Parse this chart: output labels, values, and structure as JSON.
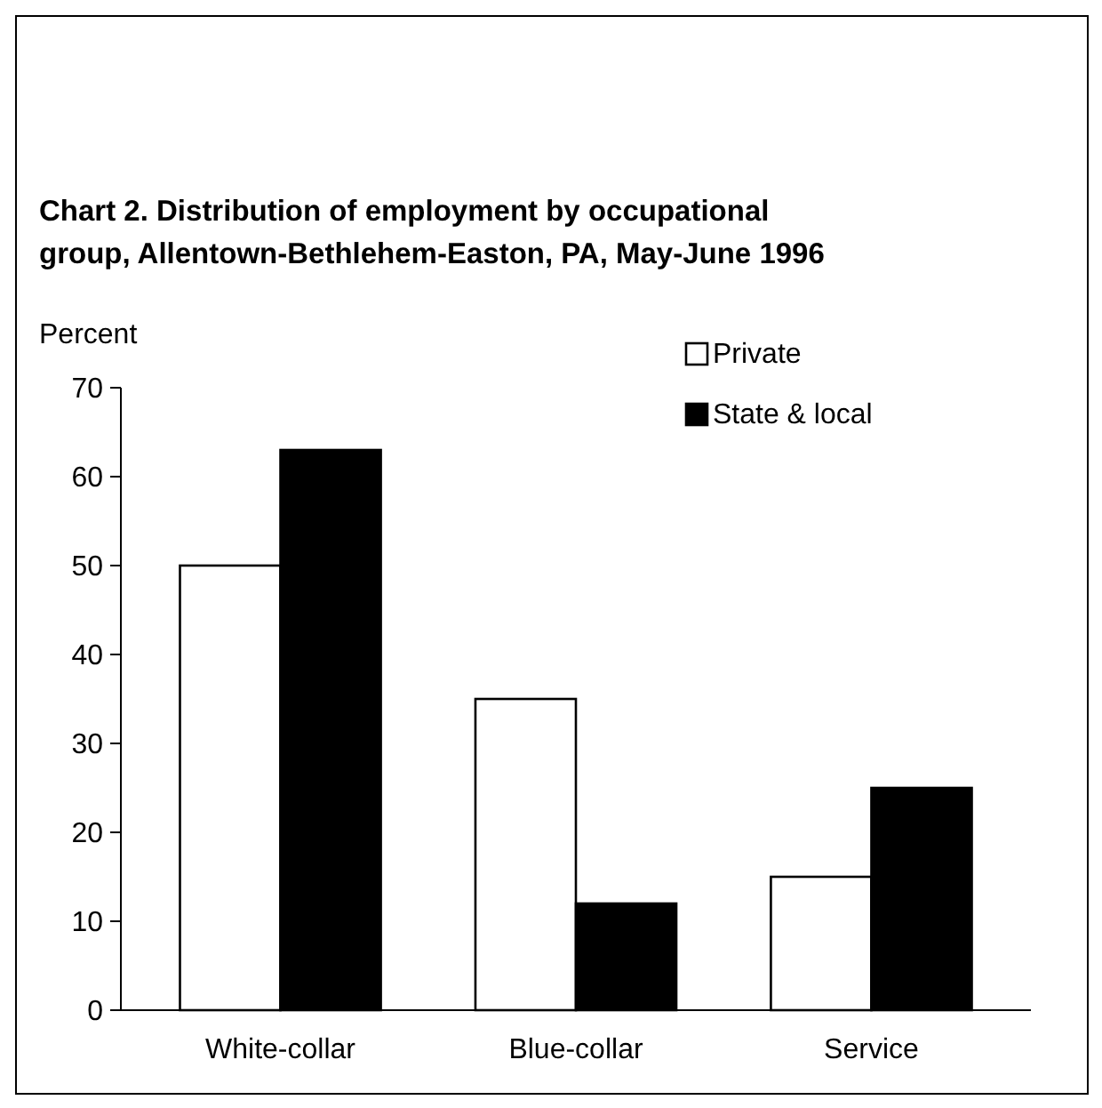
{
  "chart_data": {
    "type": "bar",
    "title": "Chart 2. Distribution of employment by occupational group, Allentown-Bethlehem-Easton, PA, May-June 1996",
    "ylabel": "Percent",
    "categories": [
      "White-collar",
      "Blue-collar",
      "Service"
    ],
    "series": [
      {
        "name": "Private",
        "color": "#ffffff",
        "values": [
          50,
          35,
          15
        ]
      },
      {
        "name": "State & local",
        "color": "#000000",
        "values": [
          63,
          12,
          25
        ]
      }
    ],
    "ylim": [
      0,
      70
    ],
    "yticks": [
      0,
      10,
      20,
      30,
      40,
      50,
      60,
      70
    ],
    "grid": false,
    "legend": "top right"
  }
}
